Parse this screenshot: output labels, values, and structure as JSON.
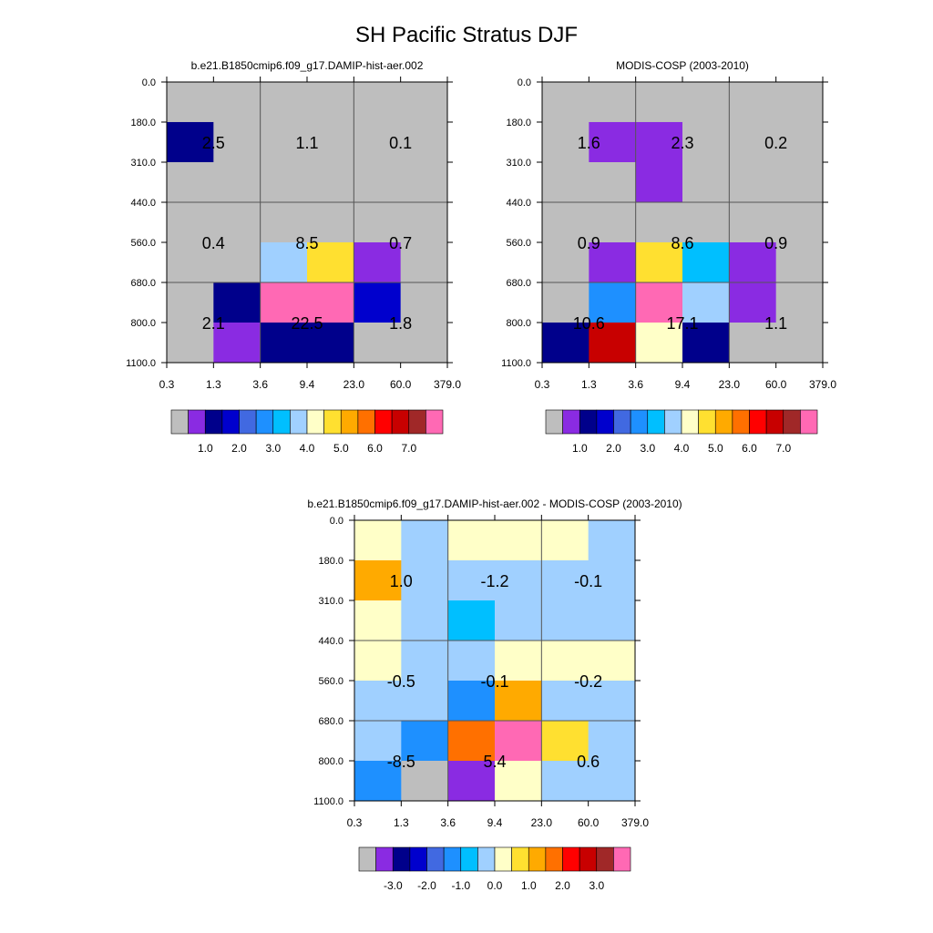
{
  "title": "SH Pacific Stratus DJF",
  "colors": {
    "missing": "#bebebe",
    "frame": "#000000",
    "grid": "#555555",
    "palette_abs": [
      "#bebebe",
      "#8a2be2",
      "#00008b",
      "#0000cd",
      "#4169e1",
      "#1e90ff",
      "#00bfff",
      "#a0d0ff",
      "#ffffc8",
      "#ffe030",
      "#ffaa00",
      "#ff7000",
      "#ff0000",
      "#c80000",
      "#a02828",
      "#ff69b4"
    ],
    "palette_diff": [
      "#bebebe",
      "#8a2be2",
      "#00008b",
      "#0000cd",
      "#4169e1",
      "#1e90ff",
      "#00bfff",
      "#a0d0ff",
      "#ffffc8",
      "#ffe030",
      "#ffaa00",
      "#ff7000",
      "#ff0000",
      "#c80000",
      "#a02828",
      "#ff69b4"
    ]
  },
  "chart_data": [
    {
      "type": "heatmap",
      "subtitle": "b.e21.B1850cmip6.f09_g17.DAMIP-hist-aer.002",
      "x_tick_labels": [
        "0.3",
        "1.3",
        "3.6",
        "9.4",
        "23.0",
        "60.0",
        "379.0"
      ],
      "y_tick_labels": [
        "0.0",
        "180.0",
        "310.0",
        "440.0",
        "560.0",
        "680.0",
        "800.0",
        "1100.0"
      ],
      "cell_color_index": [
        [
          0,
          0,
          0,
          0,
          0,
          0
        ],
        [
          2,
          0,
          0,
          0,
          0,
          0
        ],
        [
          0,
          0,
          0,
          0,
          0,
          0
        ],
        [
          0,
          0,
          0,
          0,
          0,
          0
        ],
        [
          0,
          0,
          7,
          9,
          1,
          0
        ],
        [
          0,
          2,
          15,
          15,
          3,
          0
        ],
        [
          0,
          1,
          2,
          2,
          0,
          0
        ]
      ],
      "box_labels": [
        [
          "2.5",
          "1.1",
          "0.1"
        ],
        [
          "0.4",
          "8.5",
          "0.7"
        ],
        [
          "2.1",
          "22.5",
          "1.8"
        ]
      ],
      "colorbar_labels": [
        "1.0",
        "2.0",
        "3.0",
        "4.0",
        "5.0",
        "6.0",
        "7.0"
      ]
    },
    {
      "type": "heatmap",
      "subtitle": "MODIS-COSP (2003-2010)",
      "x_tick_labels": [
        "0.3",
        "1.3",
        "3.6",
        "9.4",
        "23.0",
        "60.0",
        "379.0"
      ],
      "y_tick_labels": [
        "0.0",
        "180.0",
        "310.0",
        "440.0",
        "560.0",
        "680.0",
        "800.0",
        "1100.0"
      ],
      "cell_color_index": [
        [
          0,
          0,
          0,
          0,
          0,
          0
        ],
        [
          0,
          1,
          1,
          0,
          0,
          0
        ],
        [
          0,
          0,
          1,
          0,
          0,
          0
        ],
        [
          0,
          0,
          0,
          0,
          0,
          0
        ],
        [
          0,
          1,
          9,
          6,
          1,
          0
        ],
        [
          0,
          5,
          15,
          7,
          1,
          0
        ],
        [
          2,
          13,
          8,
          2,
          0,
          0
        ]
      ],
      "box_labels": [
        [
          "1.6",
          "2.3",
          "0.2"
        ],
        [
          "0.9",
          "8.6",
          "0.9"
        ],
        [
          "10.6",
          "17.1",
          "1.1"
        ]
      ],
      "colorbar_labels": [
        "1.0",
        "2.0",
        "3.0",
        "4.0",
        "5.0",
        "6.0",
        "7.0"
      ]
    },
    {
      "type": "heatmap",
      "subtitle": "b.e21.B1850cmip6.f09_g17.DAMIP-hist-aer.002 - MODIS-COSP (2003-2010)",
      "x_tick_labels": [
        "0.3",
        "1.3",
        "3.6",
        "9.4",
        "23.0",
        "60.0",
        "379.0"
      ],
      "y_tick_labels": [
        "0.0",
        "180.0",
        "310.0",
        "440.0",
        "560.0",
        "680.0",
        "800.0",
        "1100.0"
      ],
      "cell_color_index": [
        [
          8,
          7,
          8,
          8,
          8,
          7
        ],
        [
          10,
          7,
          7,
          7,
          7,
          7
        ],
        [
          8,
          7,
          6,
          7,
          7,
          7
        ],
        [
          8,
          7,
          7,
          8,
          8,
          8
        ],
        [
          7,
          7,
          5,
          10,
          7,
          7
        ],
        [
          7,
          5,
          11,
          15,
          9,
          7
        ],
        [
          5,
          0,
          1,
          8,
          7,
          7
        ]
      ],
      "box_labels": [
        [
          "1.0",
          "-1.2",
          "-0.1"
        ],
        [
          "-0.5",
          "-0.1",
          "-0.2"
        ],
        [
          "-8.5",
          "5.4",
          "0.6"
        ]
      ],
      "colorbar_labels": [
        "-3.0",
        "-2.0",
        "-1.0",
        "0.0",
        "1.0",
        "2.0",
        "3.0"
      ]
    }
  ]
}
